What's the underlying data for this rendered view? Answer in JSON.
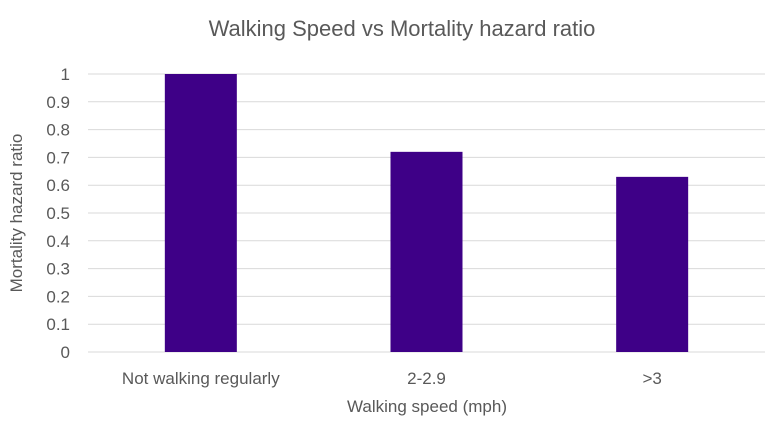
{
  "chart_data": {
    "type": "bar",
    "title": "Walking Speed vs Mortality hazard ratio",
    "xlabel": "Walking speed (mph)",
    "ylabel": "Mortality hazard ratio",
    "categories": [
      "Not walking regularly",
      "2-2.9",
      ">3"
    ],
    "values": [
      1.0,
      0.72,
      0.63
    ],
    "ylim": [
      0,
      1
    ],
    "yticks": [
      "0",
      "0.1",
      "0.2",
      "0.3",
      "0.4",
      "0.5",
      "0.6",
      "0.7",
      "0.8",
      "0.9",
      "1"
    ],
    "ytick_values": [
      0,
      0.1,
      0.2,
      0.3,
      0.4,
      0.5,
      0.6,
      0.7,
      0.8,
      0.9,
      1.0
    ],
    "grid": true,
    "legend": "none",
    "colors": {
      "bar": "#3e0087",
      "grid": "#d9d9d9",
      "text": "#595959"
    }
  }
}
